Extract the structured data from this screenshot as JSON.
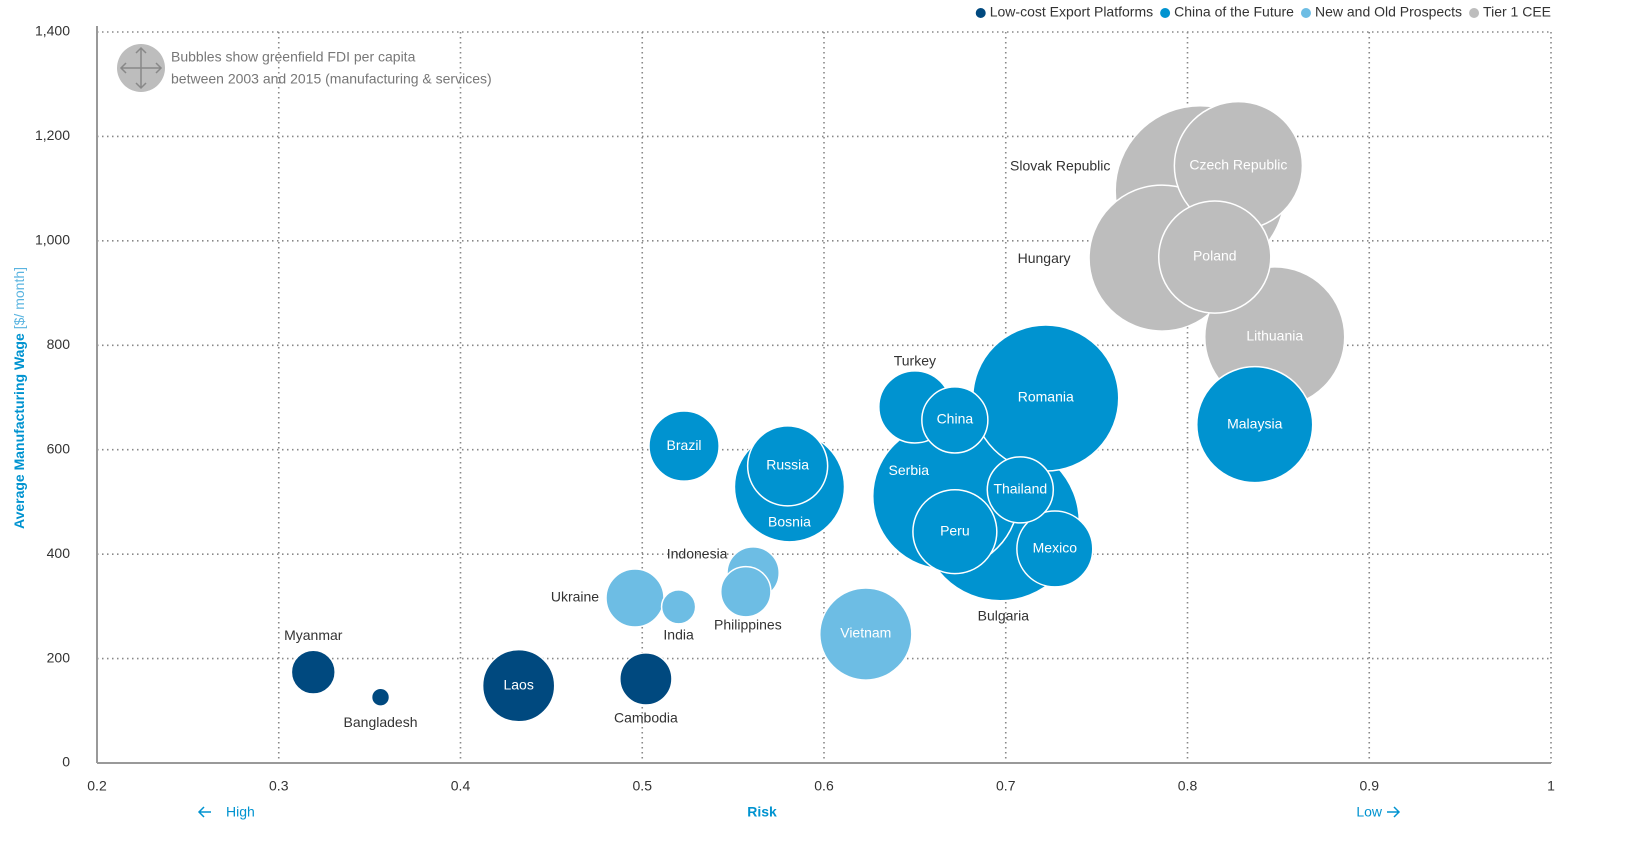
{
  "chart_data": {
    "type": "bubble",
    "annotation": [
      "Bubbles show greenfield FDI per capita",
      "between 2003 and 2015 (manufacturing & services)"
    ],
    "y_label": "Average Manufacturing Wage",
    "y_label_unit": "[$/ month]",
    "x_label": "Risk",
    "x_low_label": "High",
    "x_high_label": "Low",
    "xlim": [
      0.2,
      1.0
    ],
    "xticks": [
      0.2,
      0.3,
      0.4,
      0.5,
      0.6,
      0.7,
      0.8,
      0.9,
      1.0
    ],
    "ylim": [
      0,
      1400
    ],
    "yticks": [
      0,
      200,
      400,
      600,
      800,
      {
        "value": 1000,
        "label": "1,000"
      },
      {
        "value": 1200,
        "label": "1,200"
      },
      {
        "value": 1400,
        "label": "1,400"
      }
    ],
    "grid": true,
    "legend": "top-right",
    "series": [
      {
        "name": "Low-cost Export Platforms",
        "color": "#00497f",
        "labels": [
          "Myanmar",
          "Bangladesh",
          "Laos",
          "Cambodia"
        ],
        "x": [
          0.319,
          0.356,
          0.432,
          0.502
        ],
        "values": [
          174,
          126,
          148,
          161
        ],
        "sizes": [
          48,
          8,
          130,
          68
        ]
      },
      {
        "name": "China of the Future",
        "color": "#0093d0",
        "labels": [
          "Brazil",
          "Russia",
          "Bosnia",
          "Turkey",
          "China",
          "Serbia",
          "Romania",
          "Bulgaria",
          "Thailand",
          "Peru",
          "Mexico",
          "Malaysia"
        ],
        "x": [
          0.523,
          0.58,
          0.581,
          0.65,
          0.672,
          0.667,
          0.722,
          0.697,
          0.708,
          0.672,
          0.727,
          0.837
        ],
        "values": [
          607,
          569,
          529,
          682,
          657,
          511,
          699,
          462,
          523,
          443,
          410,
          648
        ],
        "sizes": [
          123,
          160,
          303,
          130,
          109,
          533,
          533,
          624,
          109,
          176,
          144,
          336
        ]
      },
      {
        "name": "New and Old Prospects",
        "color": "#6dbde4",
        "labels": [
          "Ukraine",
          "India",
          "Indonesia",
          "Philippines",
          "Vietnam"
        ],
        "x": [
          0.496,
          0.52,
          0.561,
          0.557,
          0.623
        ],
        "values": [
          316,
          299,
          364,
          328,
          247
        ],
        "sizes": [
          84,
          29,
          68,
          63,
          212
        ]
      },
      {
        "name": "Tier 1 CEE",
        "color": "#bdbdbd",
        "labels": [
          "Lithuania",
          "Slovak Republic",
          "Czech Republic",
          "Hungary",
          "Poland"
        ],
        "x": [
          0.848,
          0.807,
          0.828,
          0.786,
          0.815
        ],
        "values": [
          816,
          1096,
          1144,
          967,
          969
        ],
        "sizes": [
          490,
          723,
          410,
          533,
          314
        ]
      }
    ]
  }
}
